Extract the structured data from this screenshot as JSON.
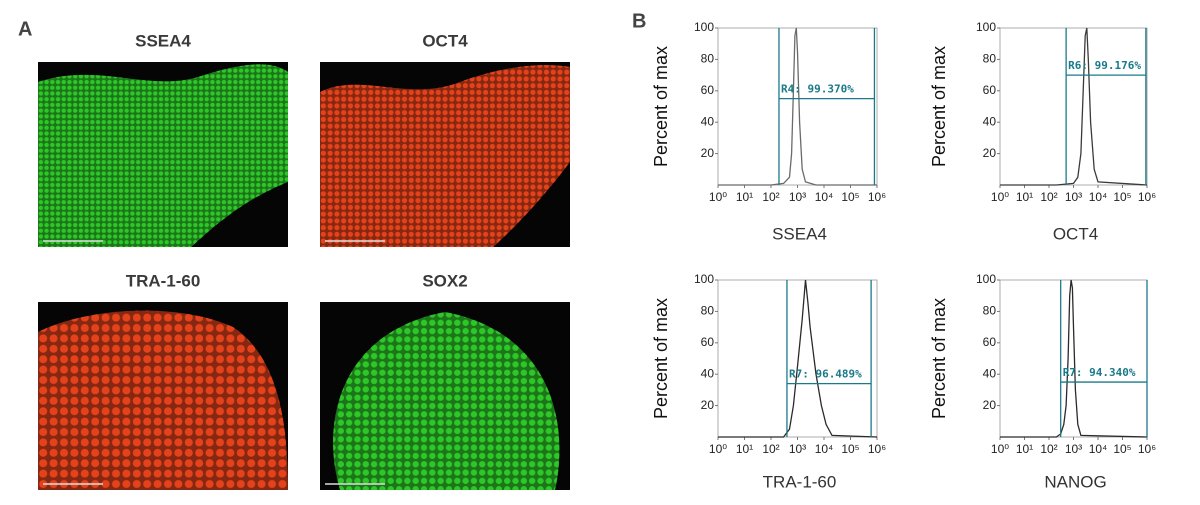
{
  "panel_a": {
    "label": "A",
    "images": [
      {
        "title": "SSEA4",
        "color": "#2fd12a"
      },
      {
        "title": "OCT4",
        "color": "#f0451c"
      },
      {
        "title": "TRA-1-60",
        "color": "#f0451c"
      },
      {
        "title": "SOX2",
        "color": "#2fd12a"
      }
    ]
  },
  "panel_b_label": "B",
  "chart_data": [
    {
      "type": "line",
      "x_label": "SSEA4",
      "y_label": "Percent of max",
      "x_scale": "log",
      "color": "#6a6a6a",
      "x": [
        1,
        100,
        300,
        500,
        600,
        700,
        800,
        900,
        1000,
        1200,
        1500,
        2000,
        5000,
        1000000
      ],
      "values": [
        0,
        0,
        1,
        5,
        20,
        60,
        95,
        100,
        85,
        40,
        10,
        2,
        0,
        0
      ],
      "xlim": [
        1,
        1000000
      ],
      "ylim": [
        0,
        100
      ],
      "xticks": [
        {
          "value": 1,
          "label": "10⁰"
        },
        {
          "value": 10,
          "label": "10¹"
        },
        {
          "value": 100,
          "label": "10²"
        },
        {
          "value": 1000,
          "label": "10³"
        },
        {
          "value": 10000,
          "label": "10⁴"
        },
        {
          "value": 100000,
          "label": "10⁵"
        },
        {
          "value": 1000000,
          "label": "10⁶"
        }
      ],
      "yticks": [
        20,
        40,
        60,
        80,
        100
      ],
      "gate": {
        "x": [
          200,
          800000
        ],
        "y": 55,
        "label": "R4: 99.370%",
        "color": "#1a7a8a"
      }
    },
    {
      "type": "line",
      "x_label": "OCT4",
      "y_label": "Percent of max",
      "x_scale": "log",
      "color": "#3a3a3a",
      "x": [
        1,
        200,
        1000,
        1500,
        2000,
        2500,
        3000,
        3500,
        4000,
        5000,
        7000,
        10000,
        1000000
      ],
      "values": [
        0,
        0,
        1,
        5,
        20,
        60,
        95,
        100,
        80,
        40,
        10,
        2,
        0
      ],
      "xlim": [
        1,
        1000000
      ],
      "ylim": [
        0,
        100
      ],
      "xticks": [
        {
          "value": 1,
          "label": "10⁰"
        },
        {
          "value": 10,
          "label": "10¹"
        },
        {
          "value": 100,
          "label": "10²"
        },
        {
          "value": 1000,
          "label": "10³"
        },
        {
          "value": 10000,
          "label": "10⁴"
        },
        {
          "value": 100000,
          "label": "10⁵"
        },
        {
          "value": 1000000,
          "label": "10⁶"
        }
      ],
      "yticks": [
        20,
        40,
        60,
        80,
        100
      ],
      "gate": {
        "x": [
          500,
          900000
        ],
        "y": 70,
        "label": "R6: 99.176%",
        "color": "#1a7a8a"
      }
    },
    {
      "type": "line",
      "x_label": "TRA-1-60",
      "y_label": "Percent of max",
      "x_scale": "log",
      "color": "#2a2a2a",
      "x": [
        1,
        300,
        500,
        700,
        1000,
        1500,
        2000,
        2500,
        3000,
        5000,
        8000,
        12000,
        20000,
        1000000
      ],
      "values": [
        0,
        0,
        5,
        20,
        45,
        75,
        100,
        85,
        70,
        40,
        20,
        8,
        1,
        0
      ],
      "xlim": [
        1,
        1000000
      ],
      "ylim": [
        0,
        100
      ],
      "xticks": [
        {
          "value": 1,
          "label": "10⁰"
        },
        {
          "value": 10,
          "label": "10¹"
        },
        {
          "value": 100,
          "label": "10²"
        },
        {
          "value": 1000,
          "label": "10³"
        },
        {
          "value": 10000,
          "label": "10⁴"
        },
        {
          "value": 100000,
          "label": "10⁵"
        },
        {
          "value": 1000000,
          "label": "10⁶"
        }
      ],
      "yticks": [
        20,
        40,
        60,
        80,
        100
      ],
      "gate": {
        "x": [
          400,
          600000
        ],
        "y": 34,
        "label": "R7: 96.489%",
        "color": "#1a7a8a"
      }
    },
    {
      "type": "line",
      "x_label": "NANOG",
      "y_label": "Percent of max",
      "x_scale": "log",
      "color": "#2a2a2a",
      "x": [
        1,
        200,
        300,
        400,
        500,
        600,
        700,
        800,
        900,
        1000,
        1200,
        1500,
        2000,
        1000000
      ],
      "values": [
        0,
        0,
        2,
        8,
        20,
        50,
        90,
        100,
        95,
        70,
        30,
        8,
        1,
        0
      ],
      "xlim": [
        1,
        1000000
      ],
      "ylim": [
        0,
        100
      ],
      "xticks": [
        {
          "value": 1,
          "label": "10⁰"
        },
        {
          "value": 10,
          "label": "10¹"
        },
        {
          "value": 100,
          "label": "10²"
        },
        {
          "value": 1000,
          "label": "10³"
        },
        {
          "value": 10000,
          "label": "10⁴"
        },
        {
          "value": 100000,
          "label": "10⁵"
        },
        {
          "value": 1000000,
          "label": "10⁶"
        }
      ],
      "yticks": [
        20,
        40,
        60,
        80,
        100
      ],
      "gate": {
        "x": [
          300,
          1000000
        ],
        "y": 35,
        "label": "R7: 94.340%",
        "color": "#1a7a8a"
      }
    }
  ]
}
